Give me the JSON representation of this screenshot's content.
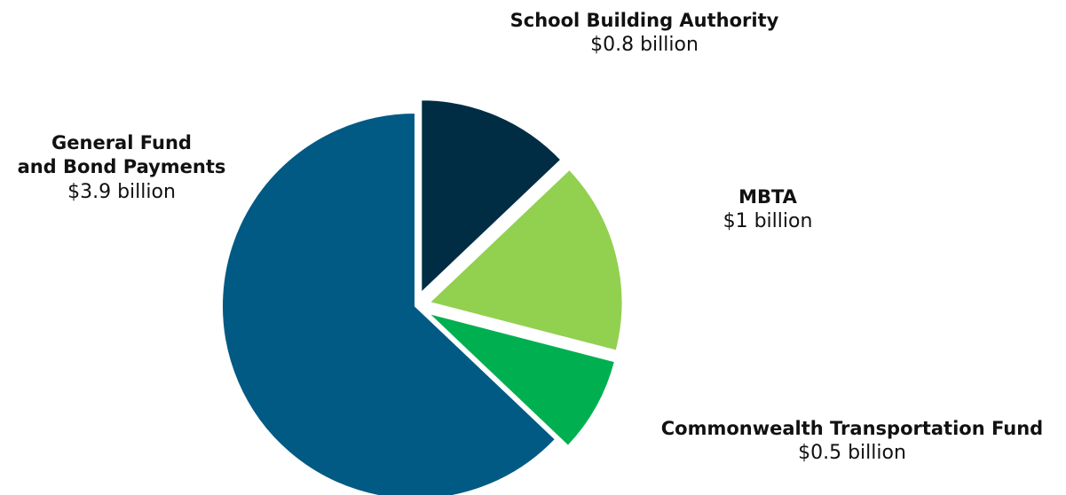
{
  "chart_data": {
    "type": "pie",
    "exploded": true,
    "title": "",
    "slices": [
      {
        "name_lines": [
          "School Building Authority"
        ],
        "value": 0.8,
        "value_label": "$0.8 billion",
        "color": "#002d43"
      },
      {
        "name_lines": [
          "MBTA"
        ],
        "value": 1.0,
        "value_label": "$1 billion",
        "color": "#92d050"
      },
      {
        "name_lines": [
          "Commonwealth Transportation Fund"
        ],
        "value": 0.5,
        "value_label": "$0.5 billion",
        "color": "#00b050"
      },
      {
        "name_lines": [
          "General Fund",
          "and Bond Payments"
        ],
        "value": 3.9,
        "value_label": "$3.9 billion",
        "color": "#015a84"
      }
    ]
  }
}
